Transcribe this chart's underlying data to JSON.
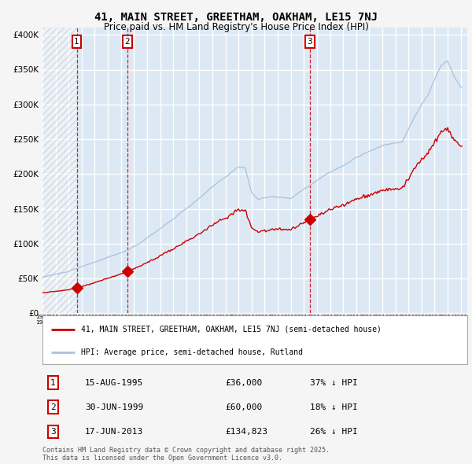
{
  "title_line1": "41, MAIN STREET, GREETHAM, OAKHAM, LE15 7NJ",
  "title_line2": "Price paid vs. HM Land Registry's House Price Index (HPI)",
  "ytick_vals": [
    0,
    50000,
    100000,
    150000,
    200000,
    250000,
    300000,
    350000,
    400000
  ],
  "ylim": [
    0,
    410000
  ],
  "xlim_start": 1993.0,
  "xlim_end": 2025.5,
  "hpi_color": "#a8c4e0",
  "price_color": "#cc0000",
  "plot_bg_color": "#dce9f5",
  "fig_bg_color": "#f5f5f5",
  "grid_color": "#ffffff",
  "hatched_region_end": 1995.62,
  "sale_dates": [
    1995.623,
    1999.497,
    2013.461
  ],
  "sale_prices": [
    36000,
    60000,
    134823
  ],
  "sale_labels": [
    "1",
    "2",
    "3"
  ],
  "legend_line1": "41, MAIN STREET, GREETHAM, OAKHAM, LE15 7NJ (semi-detached house)",
  "legend_line2": "HPI: Average price, semi-detached house, Rutland",
  "table_rows": [
    [
      "1",
      "15-AUG-1995",
      "£36,000",
      "37% ↓ HPI"
    ],
    [
      "2",
      "30-JUN-1999",
      "£60,000",
      "18% ↓ HPI"
    ],
    [
      "3",
      "17-JUN-2013",
      "£134,823",
      "26% ↓ HPI"
    ]
  ],
  "footer_text": "Contains HM Land Registry data © Crown copyright and database right 2025.\nThis data is licensed under the Open Government Licence v3.0."
}
